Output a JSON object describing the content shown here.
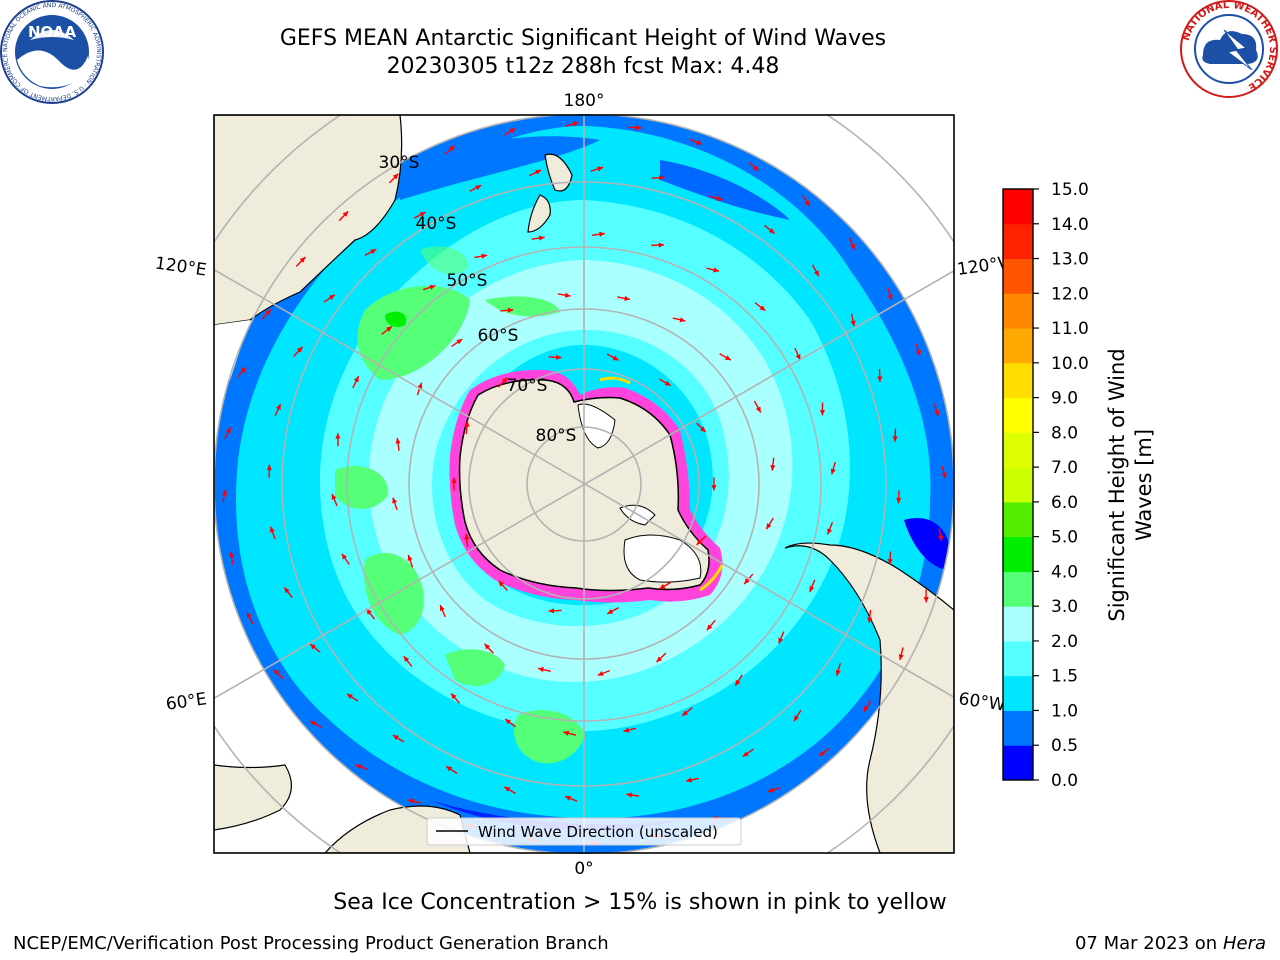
{
  "header": {
    "title_line1": "GEFS MEAN Antarctic Significant Height of Wind Waves",
    "title_line2": "20230305 t12z 288h fcst   Max: 4.48"
  },
  "logos": {
    "left": "NOAA",
    "left_ring": "NATIONAL OCEANIC AND ATMOSPHERIC ADMINISTRATION · U.S. DEPARTMENT OF COMMERCE",
    "right_ring": "NATIONAL WEATHER SERVICE"
  },
  "map": {
    "projection": "south-polar-stereographic",
    "longitude_labels": {
      "top": "180°",
      "bottom": "0°",
      "upper_left": "120°E",
      "upper_right": "120°W",
      "lower_left": "60°E",
      "lower_right": "60°W"
    },
    "latitude_labels": [
      "30°S",
      "40°S",
      "50°S",
      "60°S",
      "70°S",
      "80°S"
    ],
    "legend_entry": "Wind Wave Direction (unscaled)",
    "arrow_color": "#ff0000",
    "land_color": "#efecdc",
    "sea_ice_color": "#ff44dd"
  },
  "colorbar": {
    "label_line1": "Significant Height of Wind",
    "label_line2": "Waves [m]",
    "ticks": [
      "0.0",
      "0.5",
      "1.0",
      "1.5",
      "2.0",
      "3.0",
      "4.0",
      "5.0",
      "6.0",
      "7.0",
      "8.0",
      "9.0",
      "10.0",
      "11.0",
      "12.0",
      "13.0",
      "14.0",
      "15.0"
    ],
    "colors": [
      "#0000ff",
      "#0077ff",
      "#00e6ff",
      "#55ffff",
      "#aaffff",
      "#55ff77",
      "#00ee00",
      "#55ee00",
      "#ccff00",
      "#ddff00",
      "#ffff00",
      "#ffdd00",
      "#ffaa00",
      "#ff8800",
      "#ff5500",
      "#ff2200",
      "#ff0000"
    ]
  },
  "footer": {
    "note": "Sea Ice Concentration > 15% is shown in pink to yellow",
    "credit": "NCEP/EMC/Verification Post Processing Product Generation Branch",
    "date": "07 Mar 2023 on",
    "host": "Hera"
  }
}
